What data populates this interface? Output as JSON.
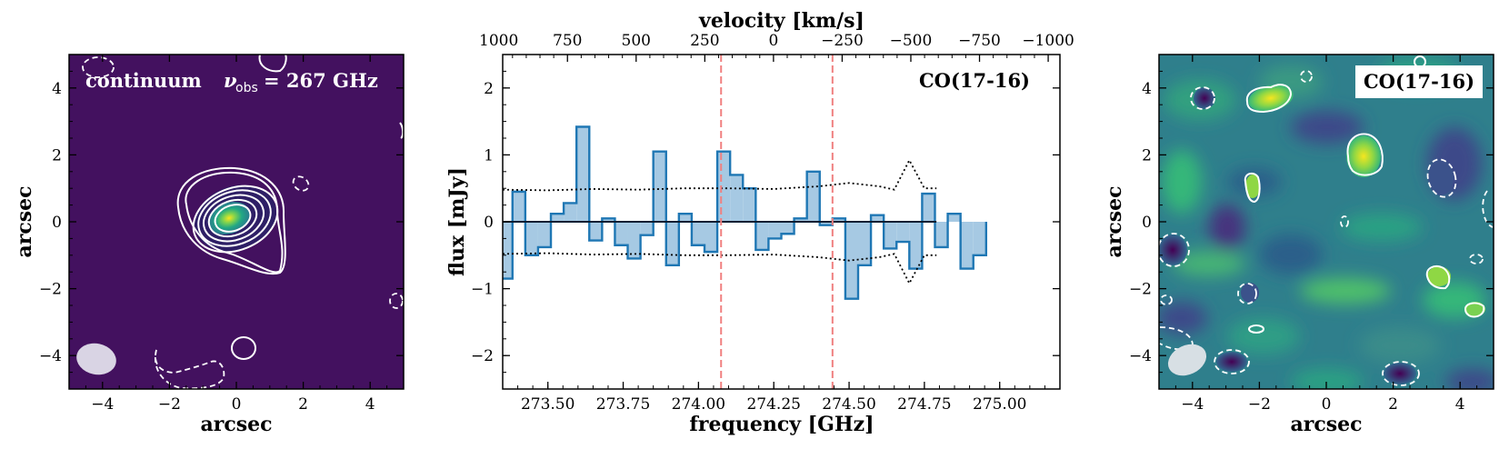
{
  "colors": {
    "histFill": "#a6c9e3",
    "histLine": "#1f77b4",
    "redDash": "#f08080",
    "mapDark": "#43115f",
    "mapTeal": "#2f7f8c",
    "mapGreen": "#39b16a",
    "mapYellow": "#f5e61f",
    "contour": "#ffffff"
  },
  "panels": {
    "left": {
      "title": "continuum",
      "nu": "ν",
      "nu_sub": "obs",
      "nu_value": "= 267 GHz",
      "xlabel": "arcsec",
      "ylabel": "arcsec",
      "xticks": [
        "−4",
        "−2",
        "0",
        "2",
        "4"
      ],
      "yticks": [
        "4",
        "2",
        "0",
        "−2",
        "−4"
      ]
    },
    "center": {
      "label": "CO(17-16)",
      "xlabel": "frequency [GHz]",
      "top_label": "velocity [km/s]",
      "ylabel": "flux [mJy]"
    },
    "right": {
      "label": "CO(17-16)",
      "xlabel": "arcsec",
      "ylabel": "arcsec",
      "xticks": [
        "−4",
        "−2",
        "0",
        "2",
        "4"
      ],
      "yticks": [
        "4",
        "2",
        "0",
        "−2",
        "−4"
      ]
    }
  },
  "chart_data": {
    "type": "bar",
    "title": "CO(17-16)",
    "xlabel": "frequency [GHz]",
    "ylabel": "flux [mJy]",
    "top_xlabel": "velocity [km/s]",
    "xlim": [
      273.35,
      275.2
    ],
    "ylim": [
      -2.5,
      2.5
    ],
    "bin_width": 0.0425,
    "bin_start": 273.34,
    "flux": [
      -0.85,
      0.45,
      -0.5,
      -0.38,
      0.12,
      0.28,
      1.42,
      -0.28,
      0.05,
      -0.35,
      -0.55,
      -0.2,
      1.05,
      -0.65,
      0.12,
      -0.35,
      -0.45,
      1.05,
      0.7,
      0.5,
      -0.42,
      -0.25,
      -0.18,
      0.05,
      0.75,
      -0.05,
      0.05,
      -1.15,
      -0.65,
      0.1,
      -0.4,
      -0.3,
      -0.7,
      0.42,
      -0.38,
      0.12,
      -0.7,
      -0.5
    ],
    "noise_upper": {
      "x": [
        273.35,
        273.5,
        273.65,
        273.8,
        273.95,
        274.1,
        274.25,
        274.4,
        274.5,
        274.6,
        274.65,
        274.7,
        274.75,
        274.79
      ],
      "y": [
        0.48,
        0.47,
        0.49,
        0.48,
        0.5,
        0.5,
        0.49,
        0.53,
        0.58,
        0.53,
        0.48,
        0.92,
        0.5,
        0.5
      ]
    },
    "noise_lower": {
      "x": [
        273.35,
        273.5,
        273.65,
        273.8,
        273.95,
        274.1,
        274.25,
        274.4,
        274.5,
        274.6,
        274.65,
        274.7,
        274.75,
        274.79
      ],
      "y": [
        -0.48,
        -0.47,
        -0.49,
        -0.48,
        -0.5,
        -0.5,
        -0.49,
        -0.53,
        -0.58,
        -0.53,
        -0.48,
        -0.92,
        -0.5,
        -0.5
      ]
    },
    "zero_line_end": 274.79,
    "vlines": [
      274.075,
      274.445
    ],
    "xticks": [
      273.5,
      273.75,
      274.0,
      274.25,
      274.5,
      274.75,
      275.0
    ],
    "xtick_labels": [
      "273.50",
      "273.75",
      "274.00",
      "274.25",
      "274.50",
      "274.75",
      "275.00"
    ],
    "yticks": [
      2,
      1,
      0,
      -1,
      -2
    ],
    "ytick_labels": [
      "2",
      "1",
      "0",
      "−1",
      "−2"
    ],
    "top_ticks_freq": [
      273.337,
      273.565,
      273.793,
      274.021,
      274.249,
      274.477,
      274.705,
      274.933,
      275.161
    ],
    "top_tick_labels": [
      "1000",
      "750",
      "500",
      "250",
      "0",
      "−250",
      "−500",
      "−750",
      "−1000"
    ]
  }
}
